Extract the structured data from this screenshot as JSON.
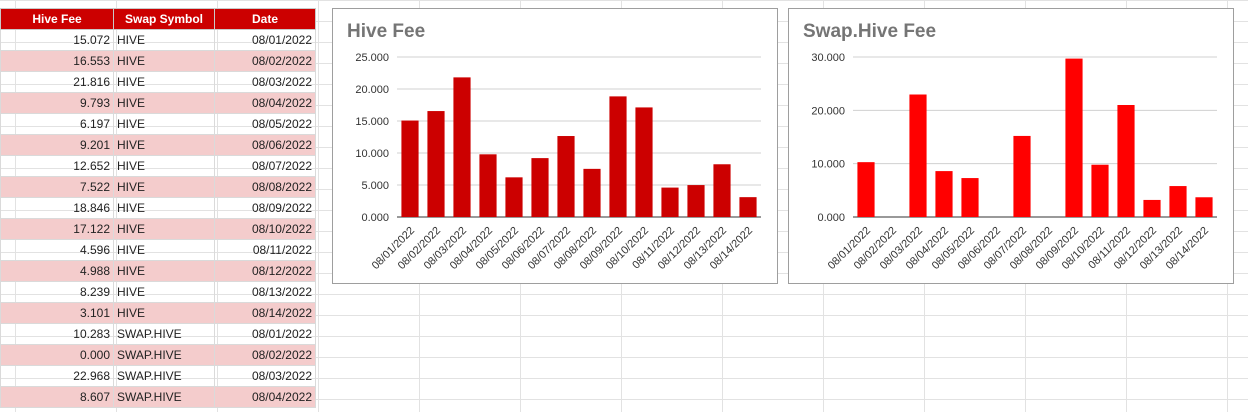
{
  "sheet": {
    "headers": [
      "Hive Fee",
      "Swap Symbol",
      "Date"
    ],
    "rows": [
      [
        "15.072",
        "HIVE",
        "08/01/2022"
      ],
      [
        "16.553",
        "HIVE",
        "08/02/2022"
      ],
      [
        "21.816",
        "HIVE",
        "08/03/2022"
      ],
      [
        "9.793",
        "HIVE",
        "08/04/2022"
      ],
      [
        "6.197",
        "HIVE",
        "08/05/2022"
      ],
      [
        "9.201",
        "HIVE",
        "08/06/2022"
      ],
      [
        "12.652",
        "HIVE",
        "08/07/2022"
      ],
      [
        "7.522",
        "HIVE",
        "08/08/2022"
      ],
      [
        "18.846",
        "HIVE",
        "08/09/2022"
      ],
      [
        "17.122",
        "HIVE",
        "08/10/2022"
      ],
      [
        "4.596",
        "HIVE",
        "08/11/2022"
      ],
      [
        "4.988",
        "HIVE",
        "08/12/2022"
      ],
      [
        "8.239",
        "HIVE",
        "08/13/2022"
      ],
      [
        "3.101",
        "HIVE",
        "08/14/2022"
      ],
      [
        "10.283",
        "SWAP.HIVE",
        "08/01/2022"
      ],
      [
        "0.000",
        "SWAP.HIVE",
        "08/02/2022"
      ],
      [
        "22.968",
        "SWAP.HIVE",
        "08/03/2022"
      ],
      [
        "8.607",
        "SWAP.HIVE",
        "08/04/2022"
      ]
    ],
    "header_color": "#cc0000",
    "band_color": "#f4cccc"
  },
  "chart_data": [
    {
      "type": "bar",
      "title": "Hive Fee",
      "categories": [
        "08/01/2022",
        "08/02/2022",
        "08/03/2022",
        "08/04/2022",
        "08/05/2022",
        "08/06/2022",
        "08/07/2022",
        "08/08/2022",
        "08/09/2022",
        "08/10/2022",
        "08/11/2022",
        "08/12/2022",
        "08/13/2022",
        "08/14/2022"
      ],
      "values": [
        15.072,
        16.553,
        21.816,
        9.793,
        6.197,
        9.201,
        12.652,
        7.522,
        18.846,
        17.122,
        4.596,
        4.988,
        8.239,
        3.101
      ],
      "yticks": [
        "0.000",
        "5.000",
        "10.000",
        "15.000",
        "20.000",
        "25.000"
      ],
      "ylim": [
        0,
        25
      ],
      "xlabel": "",
      "ylabel": "",
      "grid": true,
      "color": "#cc0000"
    },
    {
      "type": "bar",
      "title": "Swap.Hive Fee",
      "categories": [
        "08/01/2022",
        "08/02/2022",
        "08/03/2022",
        "08/04/2022",
        "08/05/2022",
        "08/06/2022",
        "08/07/2022",
        "08/08/2022",
        "08/09/2022",
        "08/10/2022",
        "08/11/2022",
        "08/12/2022",
        "08/13/2022",
        "08/14/2022"
      ],
      "values": [
        10.283,
        0,
        22.968,
        8.607,
        7.3,
        0,
        15.2,
        0,
        29.7,
        9.8,
        21.0,
        3.2,
        5.8,
        3.7
      ],
      "yticks": [
        "0.000",
        "10.000",
        "20.000",
        "30.000"
      ],
      "ylim": [
        0,
        30
      ],
      "xlabel": "",
      "ylabel": "",
      "grid": true,
      "color": "#ff0000"
    }
  ]
}
